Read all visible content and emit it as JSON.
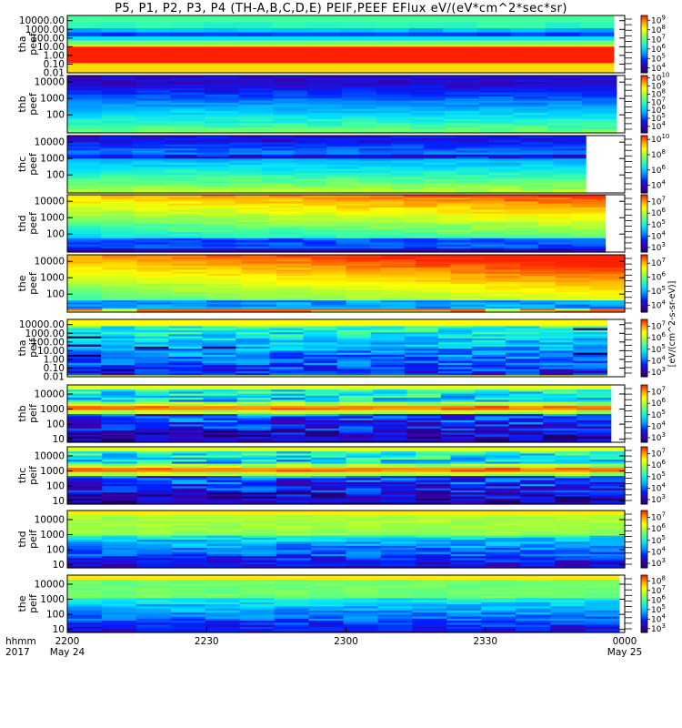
{
  "title": "P5, P1, P2, P3, P4 (TH-A,B,C,D,E) PEIF,PEEF EFlux eV/(eV*cm^2*sec*sr)",
  "colorbar_unit": "[eV/(cm^2-s-sr-eV)]",
  "colormap": [
    "#1a0070",
    "#3a00b0",
    "#0020ff",
    "#0090ff",
    "#00e0ff",
    "#40ffa0",
    "#a0ff40",
    "#ffff00",
    "#ffa000",
    "#ff2000"
  ],
  "x_axis": {
    "row_label_1": "hhmm",
    "row_label_2": "2017",
    "ticks": [
      {
        "t": 0,
        "label": "2200",
        "date": "May 24"
      },
      {
        "t": 30,
        "label": "2230",
        "date": ""
      },
      {
        "t": 60,
        "label": "2300",
        "date": ""
      },
      {
        "t": 90,
        "label": "2330",
        "date": ""
      },
      {
        "t": 120,
        "label": "0000",
        "date": "May 25"
      }
    ]
  },
  "chart_data": {
    "type": "heatmap",
    "x_range": [
      "2200 May 24",
      "0000 May 25"
    ],
    "panels": [
      {
        "label": [
          "tha",
          "peef"
        ],
        "yticks": [
          "10000.00",
          "1000.00",
          "100.00",
          "10.00",
          "1.00",
          "0.10",
          "0.01"
        ],
        "ylog": [
          -2,
          4.6
        ],
        "cb_ticks": [
          "10^4",
          "10^5",
          "10^6",
          "10^7",
          "10^8",
          "10^9"
        ],
        "cb_log": [
          3.5,
          9.5
        ],
        "data_end": 0.98,
        "pattern": "tha_peef"
      },
      {
        "label": [
          "thb",
          "peef"
        ],
        "yticks": [
          "10000",
          "1000",
          "100"
        ],
        "ylog": [
          0.9,
          4.4
        ],
        "cb_ticks": [
          "10^4",
          "10^5",
          "10^6",
          "10^7",
          "10^8",
          "10^9",
          "10^10"
        ],
        "cb_log": [
          3.2,
          10.3
        ],
        "data_end": 0.985,
        "pattern": "peef_b"
      },
      {
        "label": [
          "thc",
          "peef"
        ],
        "yticks": [
          "10000",
          "1000",
          "100"
        ],
        "ylog": [
          0.9,
          4.4
        ],
        "cb_ticks": [
          "10^4",
          "10^6",
          "10^8",
          "10^10"
        ],
        "cb_log": [
          3,
          10.5
        ],
        "data_end": 0.93,
        "pattern": "peef_c"
      },
      {
        "label": [
          "thd",
          "peef"
        ],
        "yticks": [
          "10000",
          "1000",
          "100"
        ],
        "ylog": [
          0.9,
          4.4
        ],
        "cb_ticks": [
          "10^3",
          "10^4",
          "10^5",
          "10^6",
          "10^7"
        ],
        "cb_log": [
          2.6,
          7.6
        ],
        "data_end": 0.965,
        "pattern": "peef_d"
      },
      {
        "label": [
          "the",
          "peef"
        ],
        "yticks": [
          "10000",
          "1000",
          "100"
        ],
        "ylog": [
          0.9,
          4.4
        ],
        "cb_ticks": [
          "10^4",
          "10^5",
          "10^6",
          "10^7"
        ],
        "cb_log": [
          3.5,
          7.6
        ],
        "data_end": 1.0,
        "pattern": "peef_e"
      },
      {
        "label": [
          "tha",
          "peif"
        ],
        "yticks": [
          "10000.00",
          "1000.00",
          "100.00",
          "10.00",
          "1.00",
          "0.10",
          "0.01"
        ],
        "ylog": [
          -2,
          4.6
        ],
        "cb_ticks": [
          "10^3",
          "10^4",
          "10^5",
          "10^6",
          "10^7"
        ],
        "cb_log": [
          2.6,
          7.6
        ],
        "data_end": 0.968,
        "pattern": "tha_peif"
      },
      {
        "label": [
          "thb",
          "peif"
        ],
        "yticks": [
          "10000",
          "1000",
          "100",
          "10"
        ],
        "ylog": [
          0.8,
          4.6
        ],
        "cb_ticks": [
          "10^3",
          "10^4",
          "10^5",
          "10^6",
          "10^7"
        ],
        "cb_log": [
          2.6,
          7.6
        ],
        "data_end": 0.975,
        "pattern": "peif"
      },
      {
        "label": [
          "thc",
          "peif"
        ],
        "yticks": [
          "10000",
          "1000",
          "100",
          "10"
        ],
        "ylog": [
          0.8,
          4.6
        ],
        "cb_ticks": [
          "10^3",
          "10^4",
          "10^5",
          "10^6",
          "10^7"
        ],
        "cb_log": [
          2.6,
          7.6
        ],
        "data_end": 1.0,
        "pattern": "peif"
      },
      {
        "label": [
          "thd",
          "peif"
        ],
        "yticks": [
          "10000",
          "1000",
          "100",
          "10"
        ],
        "ylog": [
          0.8,
          4.6
        ],
        "cb_ticks": [
          "10^3",
          "10^4",
          "10^5",
          "10^6",
          "10^7"
        ],
        "cb_log": [
          2.6,
          7.6
        ],
        "data_end": 1.0,
        "pattern": "peif_d"
      },
      {
        "label": [
          "the",
          "peif"
        ],
        "yticks": [
          "10000",
          "1000",
          "100",
          "10"
        ],
        "ylog": [
          0.8,
          4.6
        ],
        "cb_ticks": [
          "10^3",
          "10^4",
          "10^5",
          "10^6",
          "10^7",
          "10^8"
        ],
        "cb_log": [
          2.6,
          8.6
        ],
        "data_end": 0.99,
        "pattern": "peif_e"
      }
    ]
  }
}
